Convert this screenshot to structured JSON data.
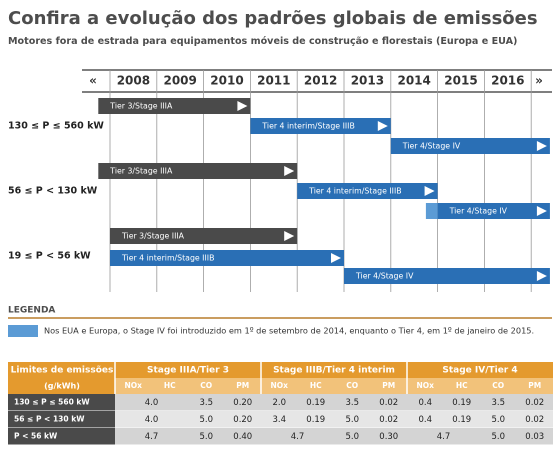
{
  "header": {
    "title": "Confira a evolução dos padrões globais de emissões",
    "subtitle": "Motores fora de estrada para equipamentos móveis de construção e florestais (Europa e EUA)"
  },
  "timeline": {
    "prev": "«",
    "next": "»",
    "years": [
      2008,
      2009,
      2010,
      2011,
      2012,
      2013,
      2014,
      2015,
      2016
    ],
    "rows": [
      {
        "label": "130 ≤ P ≤ 560 kW",
        "bars": [
          {
            "label": "Tier 3/Stage IIIA",
            "start": 2007.75,
            "end": 2011,
            "color": "#4a4a4a"
          },
          {
            "label": "Tier 4 interim/Stage IIIB",
            "start": 2011,
            "end": 2014,
            "color": "#2a6fb5"
          },
          {
            "label": "Tier 4/Stage IV",
            "start": 2014,
            "end": 2017.4,
            "color": "#2a6fb5"
          }
        ]
      },
      {
        "label": "56 ≤ P < 130 kW",
        "bars": [
          {
            "label": "Tier 3/Stage IIIA",
            "start": 2007.75,
            "end": 2012,
            "color": "#4a4a4a"
          },
          {
            "label": "Tier 4 interim/Stage IIIB",
            "start": 2012,
            "end": 2015,
            "color": "#2a6fb5"
          },
          {
            "label": "Tier 4/Stage IV",
            "start": 2015,
            "end": 2017.4,
            "color": "#2a6fb5",
            "early_start": 2014.75,
            "early_color": "#5b9bd5"
          }
        ]
      },
      {
        "label": "19 ≤ P < 56 kW",
        "bars": [
          {
            "label": "Tier 3/Stage IIIA",
            "start": 2008,
            "end": 2012,
            "color": "#4a4a4a"
          },
          {
            "label": "Tier 4 interim/Stage IIIB",
            "start": 2008,
            "end": 2013,
            "color": "#2a6fb5"
          },
          {
            "label": "Tier 4/Stage IV",
            "start": 2013,
            "end": 2017.4,
            "color": "#2a6fb5"
          }
        ]
      }
    ]
  },
  "legend": {
    "title": "LEGENDA",
    "text": "Nos EUA e Europa, o Stage IV foi introduzido em 1º de setembro de 2014, enquanto o Tier 4, em 1º de janeiro de 2015.",
    "color": "#5b9bd5"
  },
  "table": {
    "corner": "Limites de emissões",
    "unit": "(g/kWh)",
    "groups": [
      "Stage IIIA/Tier 3",
      "Stage IIIB/Tier 4 interim",
      "Stage IV/Tier 4"
    ],
    "columns": [
      "NOx",
      "HC",
      "CO",
      "PM"
    ],
    "rows": [
      {
        "label": "130 ≤ P ≤ 560 kW",
        "groups": [
          [
            "4.0",
            "3.5",
            "0.20"
          ],
          [
            "2.0",
            "0.19",
            "3.5",
            "0.02"
          ],
          [
            "0.4",
            "0.19",
            "3.5",
            "0.02"
          ]
        ]
      },
      {
        "label": "56 ≤ P < 130 kW",
        "groups": [
          [
            "4.0",
            "5.0",
            "0.20"
          ],
          [
            "3.4",
            "0.19",
            "5.0",
            "0.02"
          ],
          [
            "0.4",
            "0.19",
            "5.0",
            "0.02"
          ]
        ]
      },
      {
        "label": "P < 56 kW",
        "groups": [
          [
            "4.7",
            "5.0",
            "0.40"
          ],
          [
            "4.7",
            "5.0",
            "0.30"
          ],
          [
            "4.7",
            "5.0",
            "0.03"
          ]
        ]
      }
    ]
  }
}
